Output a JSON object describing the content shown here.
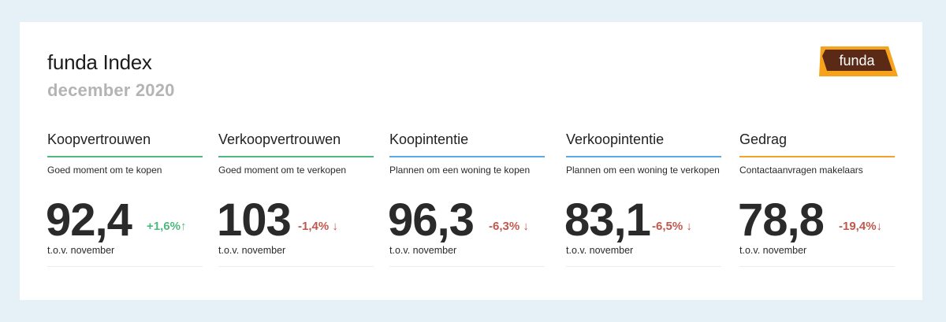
{
  "header": {
    "title": "funda Index",
    "subtitle": "december 2020",
    "logo_text": "funda"
  },
  "colors": {
    "green": "#4fb87f",
    "blue": "#5aa9e8",
    "orange": "#f4a32a",
    "positive": "#4fb87f",
    "negative": "#c0584e",
    "logo_orange": "#f7a21b",
    "logo_brown": "#5b2a16"
  },
  "metrics": [
    {
      "name": "Koopvertrouwen",
      "description": "Goed moment om te kopen",
      "value": "92,4",
      "change": "+1,6%",
      "direction": "up",
      "comparison": "t.o.v. november",
      "line_color": "green"
    },
    {
      "name": "Verkoopvertrouwen",
      "description": "Goed moment om te verkopen",
      "value": "103",
      "change": "-1,4%",
      "direction": "down",
      "comparison": "t.o.v. november",
      "line_color": "green"
    },
    {
      "name": "Koopintentie",
      "description": "Plannen om een woning te kopen",
      "value": "96,3",
      "change": "-6,3%",
      "direction": "down",
      "comparison": "t.o.v. november",
      "line_color": "blue"
    },
    {
      "name": "Verkoopintentie",
      "description": "Plannen om een woning te verkopen",
      "value": "83,1",
      "change": "-6,5%",
      "direction": "down",
      "comparison": "t.o.v. november",
      "line_color": "blue"
    },
    {
      "name": "Gedrag",
      "description": "Contactaanvragen makelaars",
      "value": "78,8",
      "change": "-19,4%",
      "direction": "down",
      "comparison": "t.o.v. november",
      "line_color": "orange"
    }
  ]
}
